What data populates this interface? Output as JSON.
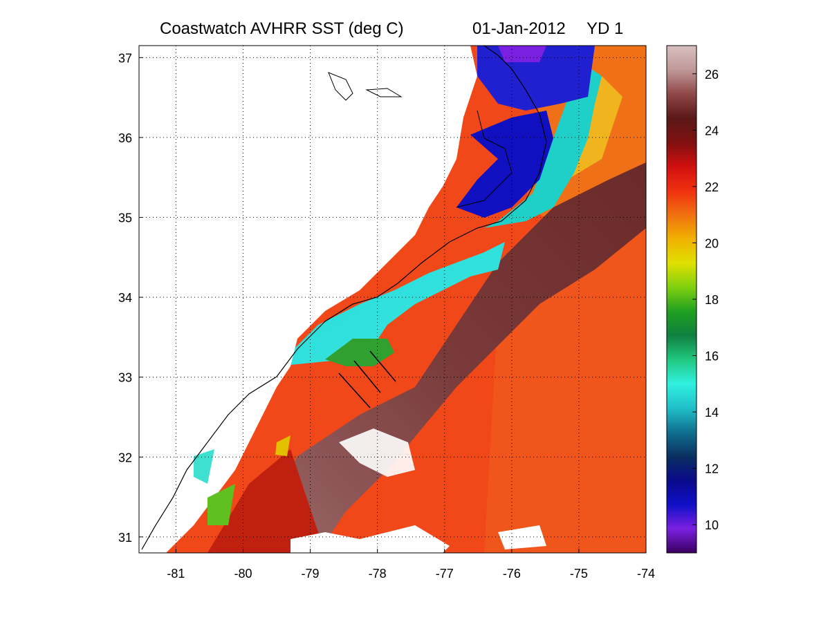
{
  "title": {
    "product": "Coastwatch   AVHRR   SST  (deg C)",
    "date": "01-Jan-2012",
    "yearday": "YD 1"
  },
  "map": {
    "lon_range": [
      -81.55,
      -74
    ],
    "lat_range": [
      30.8,
      37.15
    ],
    "lon_ticks": [
      -81,
      -80,
      -79,
      -78,
      -77,
      -76,
      -75,
      -74
    ],
    "lat_ticks": [
      31,
      32,
      33,
      34,
      35,
      36,
      37
    ],
    "grid": "dotted",
    "land_color": "#ffffff",
    "coast_color": "#000000"
  },
  "colorbar": {
    "range": [
      9,
      27
    ],
    "ticks": [
      10,
      12,
      14,
      16,
      18,
      20,
      22,
      24,
      26
    ],
    "colors": [
      "#3a0060",
      "#7a20e0",
      "#1010c8",
      "#0a0a8a",
      "#0a3060",
      "#107090",
      "#20c0c8",
      "#30f0e0",
      "#20c880",
      "#108040",
      "#20a020",
      "#80d010",
      "#e0e000",
      "#f0b000",
      "#f07010",
      "#f03010",
      "#d01010",
      "#801010",
      "#5a1818",
      "#904848",
      "#c09898",
      "#d8c0c0"
    ]
  },
  "icons": {
    "transect-lines": "black line segments offshore"
  }
}
